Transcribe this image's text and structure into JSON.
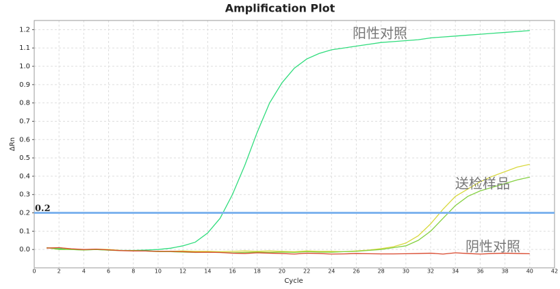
{
  "chart_data": {
    "type": "line",
    "title": "Amplification Plot",
    "xlabel": "Cycle",
    "ylabel": "ΔRn",
    "x": [
      1,
      2,
      3,
      4,
      5,
      6,
      7,
      8,
      9,
      10,
      11,
      12,
      13,
      14,
      15,
      16,
      17,
      18,
      19,
      20,
      21,
      22,
      23,
      24,
      25,
      26,
      27,
      28,
      29,
      30,
      31,
      32,
      33,
      34,
      35,
      36,
      37,
      38,
      39,
      40
    ],
    "series": [
      {
        "color": "#2fdc7c",
        "values": [
          0.01,
          0.005,
          0.0,
          -0.002,
          0.0,
          -0.003,
          -0.005,
          -0.005,
          -0.003,
          0.0,
          0.007,
          0.02,
          0.04,
          0.09,
          0.17,
          0.3,
          0.46,
          0.64,
          0.8,
          0.91,
          0.99,
          1.04,
          1.07,
          1.09,
          1.1,
          1.11,
          1.12,
          1.13,
          1.135,
          1.14,
          1.145,
          1.155,
          1.16,
          1.165,
          1.17,
          1.175,
          1.18,
          1.185,
          1.19,
          1.195
        ]
      },
      {
        "color": "#d8d83c",
        "values": [
          0.008,
          0.01,
          0.002,
          -0.002,
          0.002,
          0.0,
          -0.005,
          -0.006,
          -0.008,
          -0.01,
          -0.01,
          -0.008,
          -0.01,
          -0.01,
          -0.012,
          -0.01,
          -0.008,
          -0.01,
          -0.008,
          -0.01,
          -0.012,
          -0.008,
          -0.01,
          -0.01,
          -0.012,
          -0.008,
          -0.003,
          0.005,
          0.015,
          0.035,
          0.075,
          0.14,
          0.22,
          0.29,
          0.33,
          0.37,
          0.4,
          0.425,
          0.45,
          0.465
        ]
      },
      {
        "color": "#84d040",
        "values": [
          0.01,
          0.0,
          0.0,
          -0.003,
          0.0,
          -0.004,
          -0.006,
          -0.006,
          -0.008,
          -0.012,
          -0.012,
          -0.014,
          -0.016,
          -0.015,
          -0.016,
          -0.018,
          -0.016,
          -0.015,
          -0.016,
          -0.014,
          -0.016,
          -0.012,
          -0.014,
          -0.015,
          -0.012,
          -0.01,
          -0.005,
          0.0,
          0.01,
          0.02,
          0.05,
          0.1,
          0.17,
          0.24,
          0.29,
          0.32,
          0.34,
          0.36,
          0.38,
          0.395
        ]
      },
      {
        "color": "#d8452a",
        "values": [
          0.008,
          0.01,
          0.004,
          0.0,
          0.002,
          -0.002,
          -0.006,
          -0.008,
          -0.008,
          -0.01,
          -0.01,
          -0.012,
          -0.015,
          -0.015,
          -0.016,
          -0.02,
          -0.022,
          -0.018,
          -0.02,
          -0.022,
          -0.025,
          -0.02,
          -0.022,
          -0.025,
          -0.024,
          -0.022,
          -0.023,
          -0.024,
          -0.024,
          -0.023,
          -0.022,
          -0.02,
          -0.025,
          -0.018,
          -0.022,
          -0.025,
          -0.022,
          -0.02,
          -0.022,
          -0.023
        ]
      }
    ],
    "threshold": 0.2,
    "threshold_color": "#7eb3ee",
    "annotations": [
      "阳性对照",
      "送检样品",
      "阴性对照"
    ],
    "xlim": [
      0,
      42
    ],
    "ylim": [
      -0.1,
      1.25
    ],
    "xticks": [
      0,
      2,
      4,
      6,
      8,
      10,
      12,
      14,
      16,
      18,
      20,
      22,
      24,
      26,
      28,
      30,
      32,
      34,
      36,
      38,
      40,
      42
    ],
    "yticks": [
      {
        "value": 0,
        "label": "0.0"
      },
      0.1,
      0.2,
      0.3,
      0.4,
      0.5,
      0.6,
      0.7,
      0.8,
      0.9,
      {
        "value": 1,
        "label": "1.0"
      },
      1.1,
      1.2
    ],
    "grid": true
  }
}
